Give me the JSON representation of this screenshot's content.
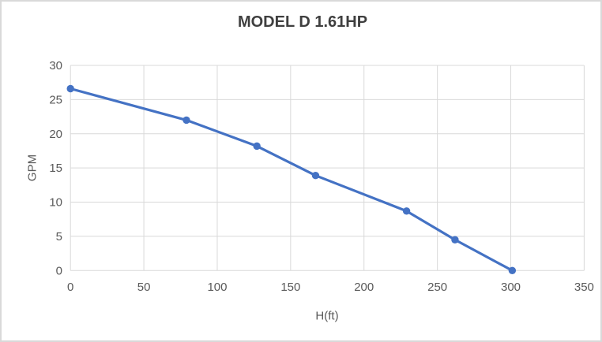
{
  "chart_data": {
    "type": "line",
    "title": "MODEL D 1.61HP",
    "xlabel": "H(ft)",
    "ylabel": "GPM",
    "x": [
      0,
      79,
      127,
      167,
      229,
      262,
      301
    ],
    "y": [
      26.6,
      22.0,
      18.2,
      13.9,
      8.7,
      4.5,
      0
    ],
    "xlim": [
      0,
      350
    ],
    "ylim": [
      0,
      30
    ],
    "xticks": [
      0,
      50,
      100,
      150,
      200,
      250,
      300,
      350
    ],
    "yticks": [
      0,
      5,
      10,
      15,
      20,
      25,
      30
    ],
    "grid": true,
    "legend_position": "none",
    "marker": "circle"
  },
  "colors": {
    "series_line": "#4472C4",
    "gridline": "#D9D9D9",
    "tick_text": "#595959",
    "title_text": "#3F3F3F",
    "axis_title_text": "#595959",
    "chart_border": "#D9D9D9",
    "background": "#FFFFFF"
  }
}
